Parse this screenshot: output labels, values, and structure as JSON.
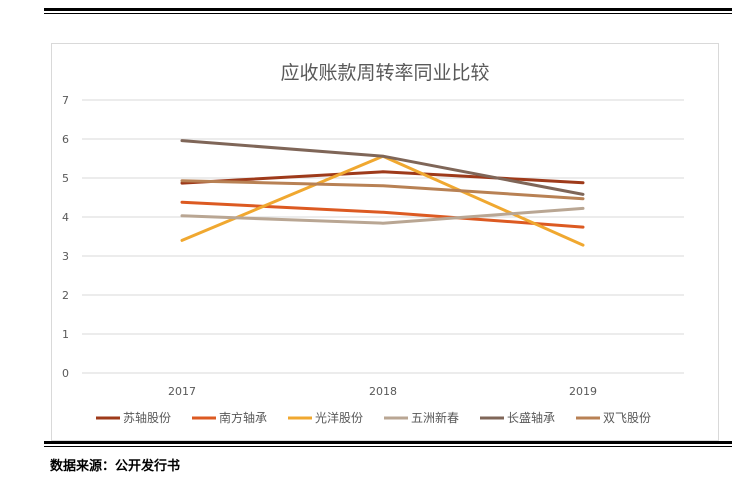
{
  "source_text": "数据来源：公开发行书",
  "chart_data": {
    "type": "line",
    "title": "应收账款周转率同业比较",
    "categories": [
      "2017",
      "2018",
      "2019"
    ],
    "ylim": [
      0,
      7
    ],
    "yticks": [
      "0",
      "1",
      "2",
      "3",
      "4",
      "5",
      "6",
      "7"
    ],
    "grid": true,
    "legend_position": "bottom",
    "series": [
      {
        "name": "苏轴股份",
        "color": "#9e3a1a",
        "values": [
          4.87,
          5.16,
          4.88
        ]
      },
      {
        "name": "南方轴承",
        "color": "#dc5a22",
        "values": [
          4.38,
          4.12,
          3.74
        ]
      },
      {
        "name": "光洋股份",
        "color": "#f0a830",
        "values": [
          3.4,
          5.56,
          3.28
        ]
      },
      {
        "name": "五洲新春",
        "color": "#b9a693",
        "values": [
          4.03,
          3.84,
          4.22
        ]
      },
      {
        "name": "长盛轴承",
        "color": "#7f6658",
        "values": [
          5.96,
          5.56,
          4.58
        ]
      },
      {
        "name": "双飞股份",
        "color": "#b88154",
        "values": [
          4.93,
          4.8,
          4.47
        ]
      }
    ]
  }
}
